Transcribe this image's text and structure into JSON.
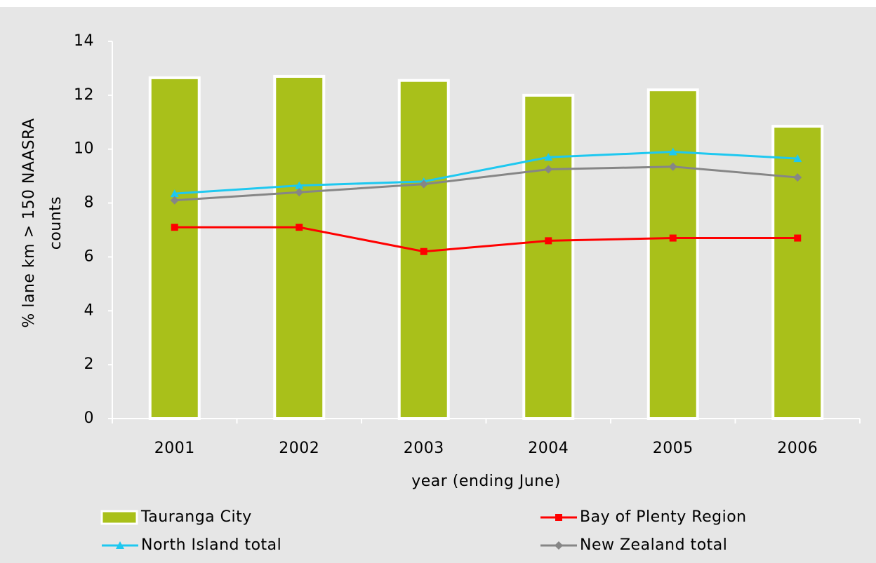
{
  "chart_data": {
    "type": "bar",
    "categories": [
      "2001",
      "2002",
      "2003",
      "2004",
      "2005",
      "2006"
    ],
    "x_label": "year (ending June)",
    "y_label": [
      "% lane km > 150 NAASRA",
      "counts"
    ],
    "ylim": [
      0,
      14
    ],
    "yticks": [
      0,
      2,
      4,
      6,
      8,
      10,
      12,
      14
    ],
    "grid": false,
    "series": [
      {
        "name": "Tauranga City",
        "type": "bar",
        "color": "#a9c01a",
        "values": [
          12.65,
          12.7,
          12.55,
          12.0,
          12.2,
          10.85
        ]
      },
      {
        "name": "Bay of Plenty Region",
        "type": "line",
        "marker": "square",
        "color": "#ff0000",
        "values": [
          7.1,
          7.1,
          6.2,
          6.6,
          6.7,
          6.7
        ]
      },
      {
        "name": "North Island total",
        "type": "line",
        "marker": "triangle",
        "color": "#1ec8f0",
        "values": [
          8.35,
          8.65,
          8.8,
          9.7,
          9.9,
          9.65
        ]
      },
      {
        "name": "New Zealand total",
        "type": "line",
        "marker": "diamond",
        "color": "#868686",
        "values": [
          8.1,
          8.4,
          8.7,
          9.25,
          9.35,
          8.95
        ]
      }
    ]
  }
}
